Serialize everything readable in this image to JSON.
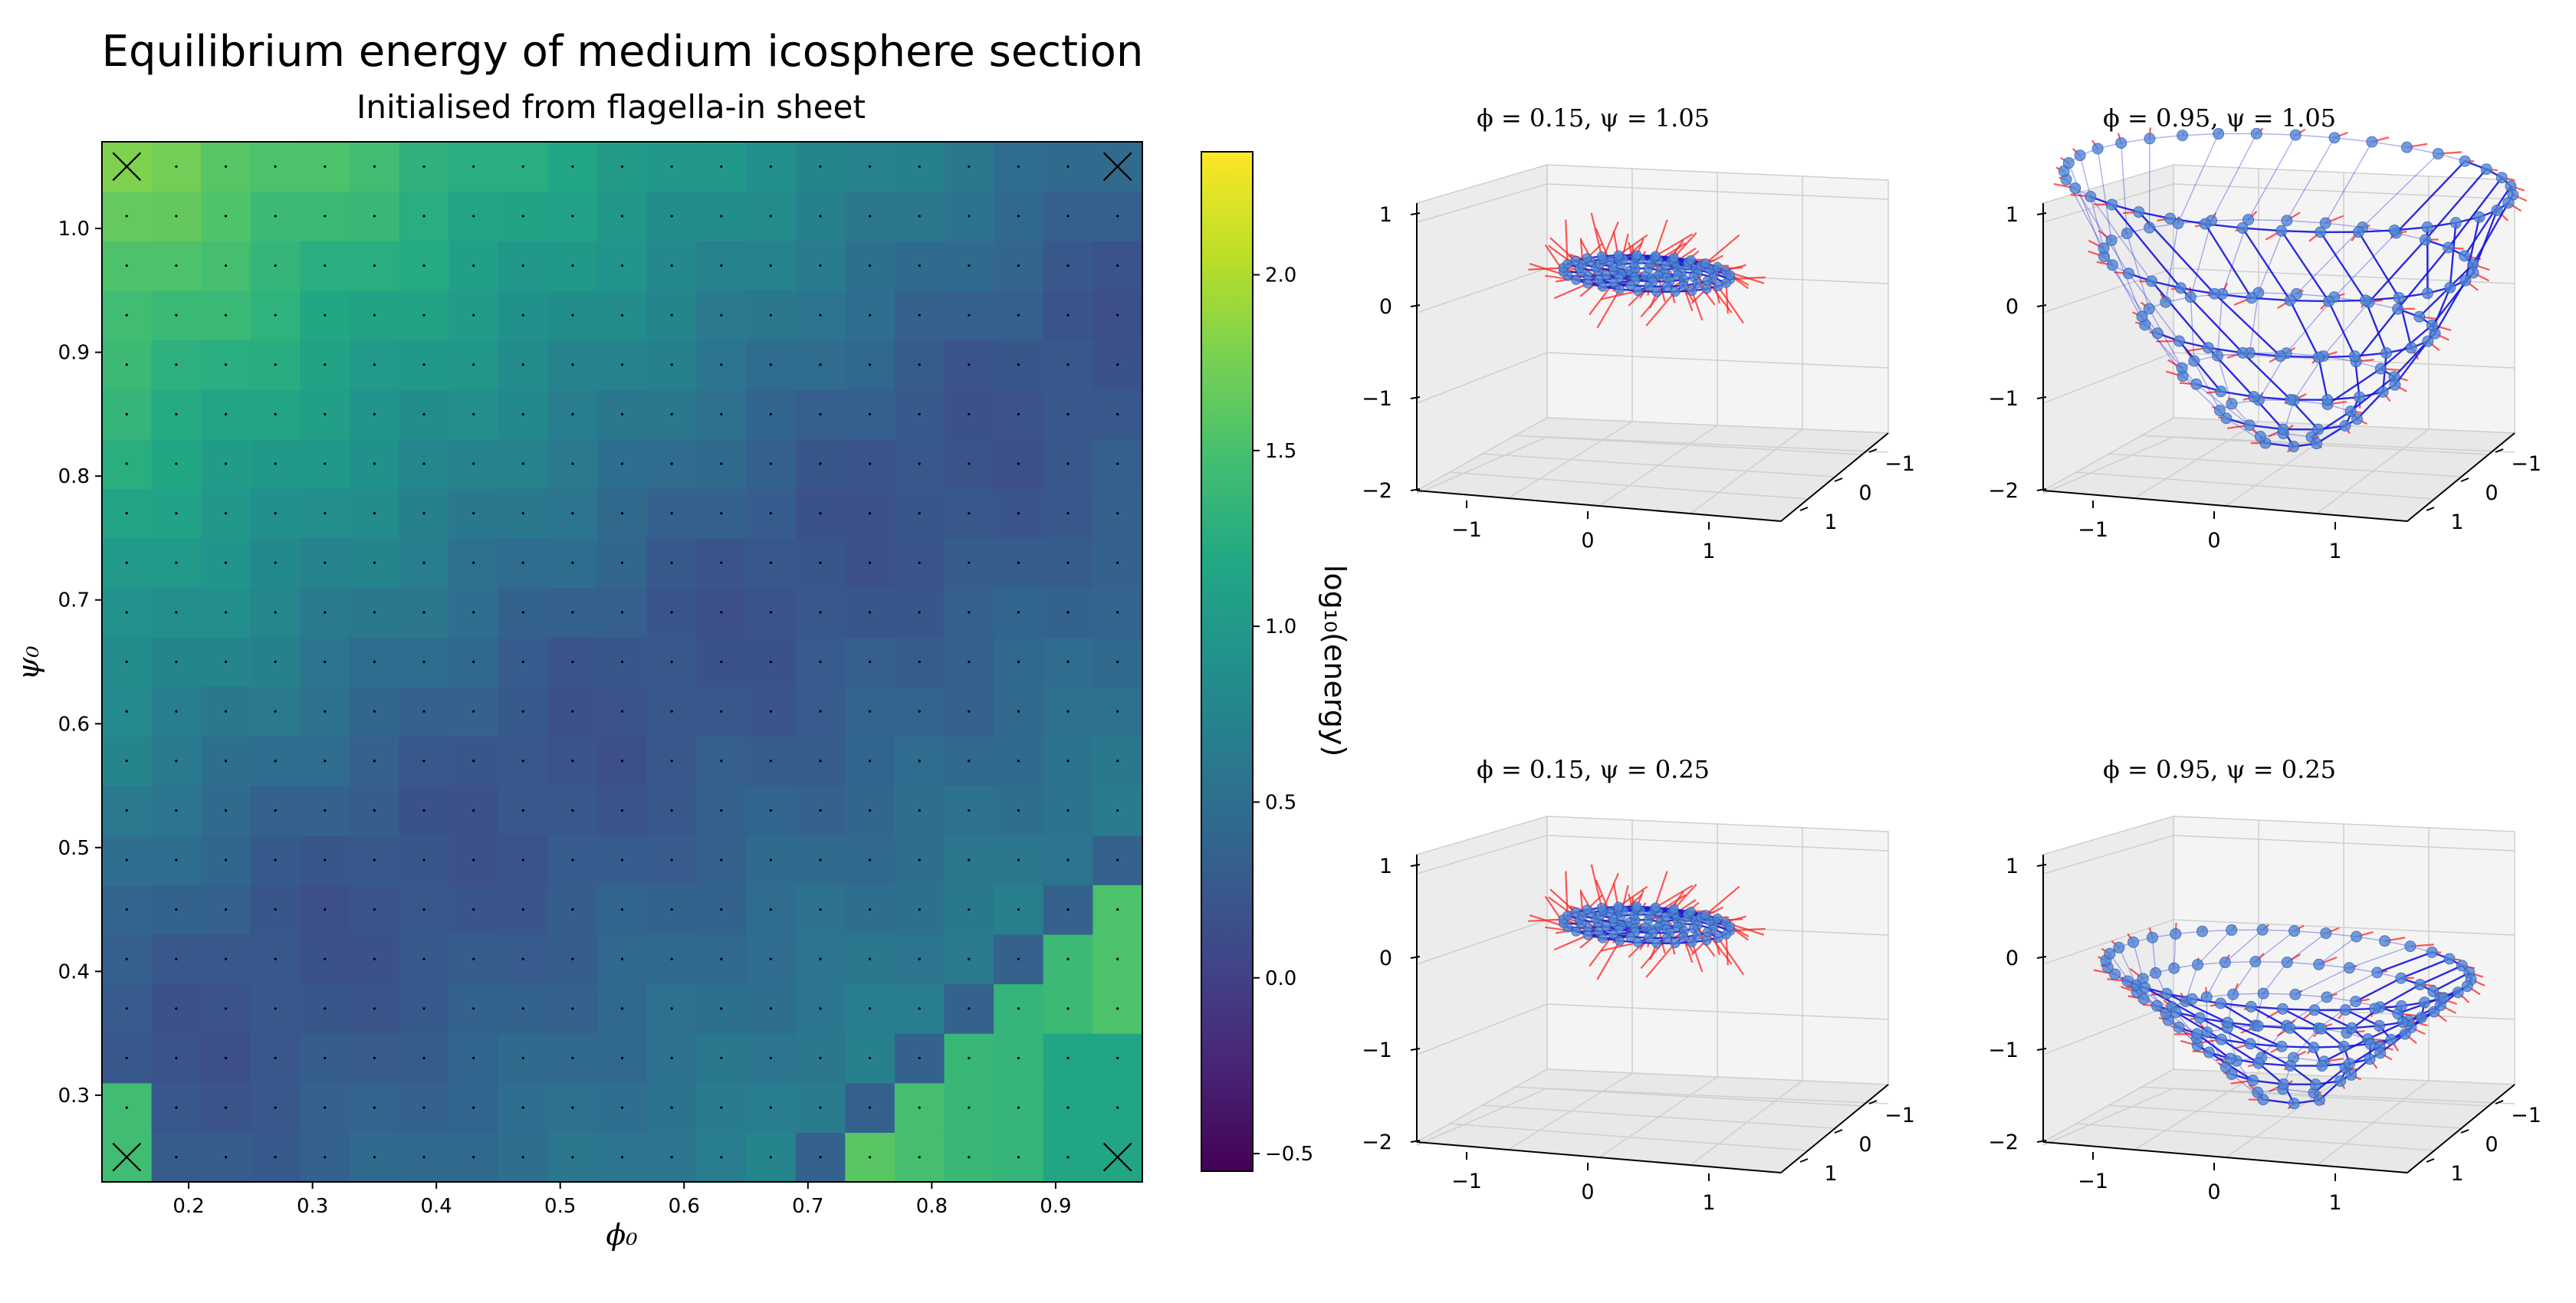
{
  "title": "Equilibrium energy of medium icosphere section",
  "subtitle": "Initialised from flagella-in sheet",
  "chart_data": [
    {
      "type": "heatmap",
      "xlabel": "ϕ₀",
      "ylabel": "ψ₀",
      "colorbar_label": "log₁₀(energy)",
      "colormap": "viridis",
      "vmin": -0.55,
      "vmax": 2.35,
      "xlim": [
        0.13,
        0.97
      ],
      "ylim": [
        0.23,
        1.07
      ],
      "x_ticks": [
        "0.2",
        "0.3",
        "0.4",
        "0.5",
        "0.6",
        "0.7",
        "0.8",
        "0.9"
      ],
      "y_ticks": [
        "0.3",
        "0.4",
        "0.5",
        "0.6",
        "0.7",
        "0.8",
        "0.9",
        "1.0"
      ],
      "colorbar_ticks": [
        "−0.5",
        "0.0",
        "0.5",
        "1.0",
        "1.5",
        "2.0"
      ],
      "colorbar_tick_values": [
        -0.5,
        0.0,
        0.5,
        1.0,
        1.5,
        2.0
      ],
      "phi_range": [
        0.15,
        0.95
      ],
      "psi_range": [
        0.25,
        1.05
      ],
      "grid_steps": 21,
      "marked_corners": [
        [
          0.15,
          1.05
        ],
        [
          0.95,
          1.05
        ],
        [
          0.15,
          0.25
        ],
        [
          0.95,
          0.25
        ]
      ],
      "point_markers": true
    },
    {
      "type": "3d-scatter",
      "title": "ϕ = 0.15, ψ = 1.05",
      "shape": "flat-disc",
      "z_ticks": [
        "1",
        "0",
        "−1",
        "−2"
      ],
      "x_ticks": [
        "−1",
        "0",
        "1"
      ],
      "y_ticks": [
        "−1",
        "0",
        "1"
      ]
    },
    {
      "type": "3d-scatter",
      "title": "ϕ = 0.95, ψ = 1.05",
      "shape": "open-bowl",
      "z_ticks": [
        "1",
        "0",
        "−1",
        "−2"
      ],
      "x_ticks": [
        "−1",
        "0",
        "1"
      ],
      "y_ticks": [
        "−1",
        "0",
        "1"
      ]
    },
    {
      "type": "3d-scatter",
      "title": "ϕ = 0.15, ψ = 0.25",
      "shape": "flat-disc",
      "z_ticks": [
        "1",
        "0",
        "−1",
        "−2"
      ],
      "x_ticks": [
        "−1",
        "0",
        "1"
      ],
      "y_ticks": [
        "−1",
        "0",
        "1"
      ]
    },
    {
      "type": "3d-scatter",
      "title": "ϕ = 0.95, ψ = 0.25",
      "shape": "closed-dome",
      "z_ticks": [
        "1",
        "0",
        "−1",
        "−2"
      ],
      "x_ticks": [
        "−1",
        "0",
        "1"
      ],
      "y_ticks": [
        "−1",
        "0",
        "1"
      ]
    }
  ],
  "colors": {
    "mesh_edge": "#1515e0",
    "node": "#4f86d8",
    "arrow": "#ff2020",
    "grid": "#cfcfcf",
    "marker": "#000000"
  }
}
